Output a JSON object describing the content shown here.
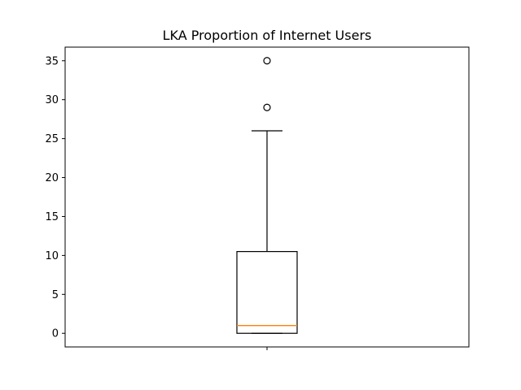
{
  "chart_data": {
    "type": "boxplot",
    "title": "LKA Proportion of Internet Users",
    "xlabel": "",
    "ylabel": "",
    "ylim": [
      -1.75,
      36.75
    ],
    "yticks": [
      0,
      5,
      10,
      15,
      20,
      25,
      30,
      35
    ],
    "ytick_labels": [
      "0",
      "5",
      "10",
      "15",
      "20",
      "25",
      "30",
      "35"
    ],
    "grid": false,
    "legend": "none",
    "series": [
      {
        "whisker_low": 0,
        "q1": 0,
        "median": 1,
        "q3": 10.5,
        "whisker_high": 26,
        "outliers": [
          29,
          35
        ]
      }
    ],
    "colors": {
      "box": "#000000",
      "median": "#ff7f0e",
      "whisker": "#000000",
      "outlier": "#000000"
    }
  }
}
